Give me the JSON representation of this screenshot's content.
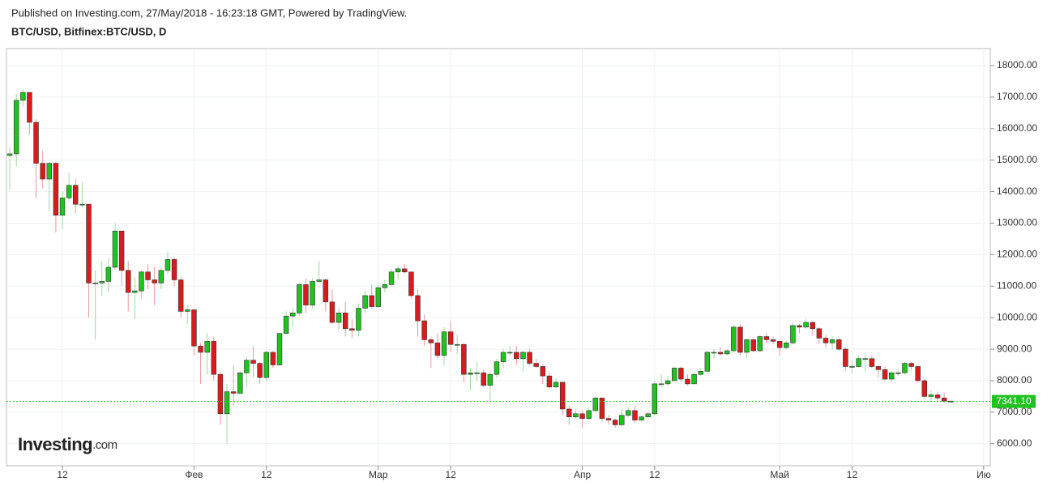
{
  "header": {
    "published": "Published on Investing.com, 27/May/2018 - 16:23:18 GMT, Powered by TradingView.",
    "symbol": "BTC/USD, Bitfinex:BTC/USD, D"
  },
  "logo": {
    "name": "Investing",
    "suffix": ".com"
  },
  "chart_data": {
    "type": "candlestick",
    "x": [
      4,
      5,
      6,
      7,
      8,
      9,
      10,
      11,
      12,
      13,
      14,
      15,
      16,
      17,
      18,
      19,
      20,
      21,
      22,
      23,
      24,
      25,
      26,
      27,
      28,
      29,
      30,
      31,
      32,
      33,
      34,
      35,
      36,
      37,
      38,
      39,
      40,
      41,
      42,
      43,
      44,
      45,
      46,
      47,
      48,
      49,
      50,
      51,
      52,
      53,
      54,
      55,
      56,
      57,
      58,
      59,
      60,
      61,
      62,
      63,
      64,
      65,
      66,
      67,
      68,
      69,
      70,
      71,
      72,
      73,
      74,
      75,
      76,
      77,
      78,
      79,
      80,
      81,
      82,
      83,
      84,
      85,
      86,
      87,
      88,
      89,
      90,
      91,
      92,
      93,
      94,
      95,
      96,
      97,
      98,
      99,
      100,
      101,
      102,
      103,
      104,
      105,
      106,
      107,
      108,
      109,
      110,
      111,
      112,
      113,
      114,
      115,
      116,
      117,
      118,
      119,
      120,
      121,
      122,
      123,
      124,
      125,
      126,
      127,
      128,
      129,
      130,
      131,
      132,
      133,
      134,
      135,
      136,
      137,
      138,
      139,
      140,
      141,
      142,
      143,
      144,
      145,
      146,
      147
    ],
    "open": [
      15150,
      15200,
      16900,
      17150,
      16200,
      14900,
      14400,
      14900,
      13250,
      13800,
      14200,
      13600,
      13600,
      11100,
      11100,
      11150,
      11600,
      12750,
      11500,
      10800,
      10850,
      11450,
      11200,
      11100,
      11500,
      11850,
      11200,
      10200,
      10250,
      9100,
      8900,
      9250,
      8200,
      6950,
      7650,
      7600,
      8250,
      8650,
      8550,
      8100,
      8900,
      8500,
      9500,
      10050,
      10150,
      11050,
      10400,
      11150,
      11200,
      10500,
      9850,
      10150,
      9650,
      9600,
      10300,
      10700,
      10350,
      10950,
      11050,
      11450,
      11550,
      11450,
      10700,
      9900,
      9300,
      9200,
      8800,
      9550,
      9150,
      9150,
      8200,
      8250,
      8250,
      7850,
      8200,
      8600,
      8900,
      8900,
      8700,
      8900,
      8550,
      8450,
      8150,
      7800,
      7950,
      7100,
      6850,
      6950,
      6800,
      7050,
      7450,
      6800,
      6750,
      6600,
      6900,
      7050,
      6750,
      6850,
      6950,
      7900,
      7900,
      8000,
      8400,
      8050,
      7900,
      8200,
      8300,
      8900,
      8900,
      8850,
      8950,
      9700,
      8900,
      9300,
      8950,
      9400,
      9300,
      9250,
      9050,
      9200,
      9750,
      9700,
      9850,
      9650,
      9350,
      9200,
      9300,
      9000,
      8450,
      8450,
      8700,
      8700,
      8450,
      8350,
      8050,
      8250,
      8250,
      8550,
      8450,
      8000,
      7500,
      7550,
      7450,
      7350
    ],
    "high": [
      15400,
      17100,
      17250,
      17150,
      16300,
      15300,
      14950,
      14950,
      14000,
      14600,
      14400,
      14300,
      13600,
      11500,
      11800,
      11900,
      13000,
      12750,
      11800,
      11300,
      11500,
      11700,
      11600,
      11600,
      12100,
      11900,
      11300,
      10400,
      10250,
      9200,
      9500,
      9400,
      8300,
      7900,
      8500,
      8300,
      8750,
      9100,
      8600,
      8950,
      8950,
      9500,
      10200,
      10300,
      11100,
      11250,
      11250,
      11800,
      11250,
      10900,
      10300,
      10500,
      9950,
      10450,
      10850,
      11050,
      11100,
      11200,
      11550,
      11650,
      11700,
      11450,
      10900,
      10100,
      9400,
      9500,
      9700,
      9900,
      9450,
      9200,
      8400,
      8600,
      8350,
      8300,
      8700,
      9000,
      9100,
      9100,
      8950,
      9000,
      8700,
      8500,
      8250,
      8100,
      7950,
      7200,
      7100,
      7050,
      7150,
      7500,
      7450,
      6900,
      6800,
      7100,
      7150,
      7200,
      6900,
      7000,
      8000,
      8200,
      8150,
      8450,
      8450,
      8200,
      8250,
      8400,
      8950,
      9000,
      9050,
      9000,
      9750,
      9800,
      9350,
      9350,
      9450,
      9500,
      9400,
      9300,
      9250,
      9800,
      9800,
      9950,
      9900,
      9700,
      9450,
      9400,
      9350,
      9050,
      8650,
      8800,
      8850,
      8800,
      8500,
      8450,
      8300,
      8350,
      8600,
      8600,
      8500,
      8050,
      7700,
      7650,
      7600,
      7400
    ],
    "low": [
      14050,
      14800,
      16700,
      15800,
      13800,
      14100,
      13400,
      12700,
      12800,
      13700,
      13300,
      13500,
      10000,
      9300,
      10700,
      10800,
      11500,
      11000,
      10200,
      9950,
      10600,
      10900,
      10400,
      10900,
      11400,
      11000,
      10000,
      9800,
      8800,
      7900,
      8200,
      8000,
      6600,
      6000,
      7200,
      7700,
      7800,
      8100,
      7900,
      8000,
      8400,
      8500,
      9500,
      9700,
      10050,
      10150,
      10300,
      11100,
      10200,
      9800,
      9600,
      9400,
      9350,
      9400,
      10150,
      10300,
      10300,
      10800,
      11000,
      11200,
      11400,
      10600,
      9400,
      9100,
      8400,
      8700,
      8500,
      8900,
      8850,
      7950,
      7700,
      8000,
      7800,
      7300,
      8100,
      8400,
      8750,
      8500,
      8300,
      8500,
      8400,
      7900,
      7750,
      7750,
      6900,
      6600,
      6800,
      6500,
      6750,
      7000,
      6700,
      6600,
      6500,
      6550,
      6850,
      6650,
      6700,
      6800,
      6900,
      7800,
      7850,
      8000,
      7950,
      7850,
      7900,
      8150,
      8250,
      8700,
      8800,
      8800,
      8900,
      8800,
      8700,
      8900,
      8900,
      9200,
      9150,
      8800,
      9000,
      9150,
      9500,
      9650,
      9450,
      9150,
      9050,
      9000,
      8950,
      8300,
      8250,
      8400,
      8300,
      8400,
      8100,
      8000,
      7950,
      8150,
      8200,
      8350,
      7950,
      7450,
      7350,
      7350,
      7300,
      7300
    ],
    "close": [
      15200,
      16900,
      17150,
      16200,
      14900,
      14400,
      14900,
      13250,
      13800,
      14200,
      13600,
      13600,
      11100,
      11100,
      11150,
      11600,
      12750,
      11500,
      10800,
      10850,
      11450,
      11200,
      11100,
      11500,
      11850,
      11200,
      10200,
      10250,
      9100,
      8900,
      9250,
      8200,
      6950,
      7650,
      7600,
      8250,
      8650,
      8550,
      8100,
      8900,
      8500,
      9500,
      10050,
      10150,
      11050,
      10400,
      11150,
      11200,
      10500,
      9850,
      10150,
      9650,
      9600,
      10300,
      10700,
      10350,
      10950,
      11050,
      11450,
      11550,
      11450,
      10700,
      9900,
      9300,
      9200,
      8800,
      9550,
      9150,
      9150,
      8200,
      8250,
      8250,
      7850,
      8200,
      8600,
      8900,
      8900,
      8700,
      8900,
      8550,
      8450,
      8150,
      7800,
      7950,
      7100,
      6850,
      6950,
      6800,
      7050,
      7450,
      6800,
      6750,
      6600,
      6900,
      7050,
      6750,
      6850,
      6950,
      7900,
      7900,
      8000,
      8400,
      8050,
      7900,
      8200,
      8300,
      8900,
      8900,
      8850,
      8950,
      9700,
      8900,
      9300,
      8950,
      9400,
      9300,
      9250,
      9050,
      9200,
      9750,
      9700,
      9850,
      9650,
      9350,
      9200,
      9300,
      9000,
      8450,
      8450,
      8700,
      8700,
      8450,
      8350,
      8050,
      8250,
      8250,
      8550,
      8450,
      8000,
      7500,
      7550,
      7450,
      7350,
      7341.1
    ],
    "up_color": "#1fc21f",
    "down_color": "#d81c1c",
    "price_line": {
      "value": 7341.1,
      "label": "7341.10",
      "color": "#1fc21f"
    },
    "xlim": [
      3.5,
      153
    ],
    "xticks": [
      {
        "value": 12,
        "label": "12"
      },
      {
        "value": 32,
        "label": "Фев"
      },
      {
        "value": 43,
        "label": "12"
      },
      {
        "value": 60,
        "label": "Мар"
      },
      {
        "value": 71,
        "label": "12"
      },
      {
        "value": 91,
        "label": "Апр"
      },
      {
        "value": 102,
        "label": "12"
      },
      {
        "value": 121,
        "label": "Май"
      },
      {
        "value": 132,
        "label": "12"
      },
      {
        "value": 152,
        "label": "Ию"
      }
    ],
    "ylim": [
      5300,
      18540
    ],
    "yticks": [
      {
        "value": 6000,
        "label": "6000.00"
      },
      {
        "value": 7000,
        "label": "7000.00"
      },
      {
        "value": 8000,
        "label": "8000.00"
      },
      {
        "value": 9000,
        "label": "9000.00"
      },
      {
        "value": 10000,
        "label": "10000.00"
      },
      {
        "value": 11000,
        "label": "11000.00"
      },
      {
        "value": 12000,
        "label": "12000.00"
      },
      {
        "value": 13000,
        "label": "13000.00"
      },
      {
        "value": 14000,
        "label": "14000.00"
      },
      {
        "value": 15000,
        "label": "15000.00"
      },
      {
        "value": 16000,
        "label": "16000.00"
      },
      {
        "value": 17000,
        "label": "17000.00"
      },
      {
        "value": 18000,
        "label": "18000.00"
      }
    ],
    "grid": true
  }
}
